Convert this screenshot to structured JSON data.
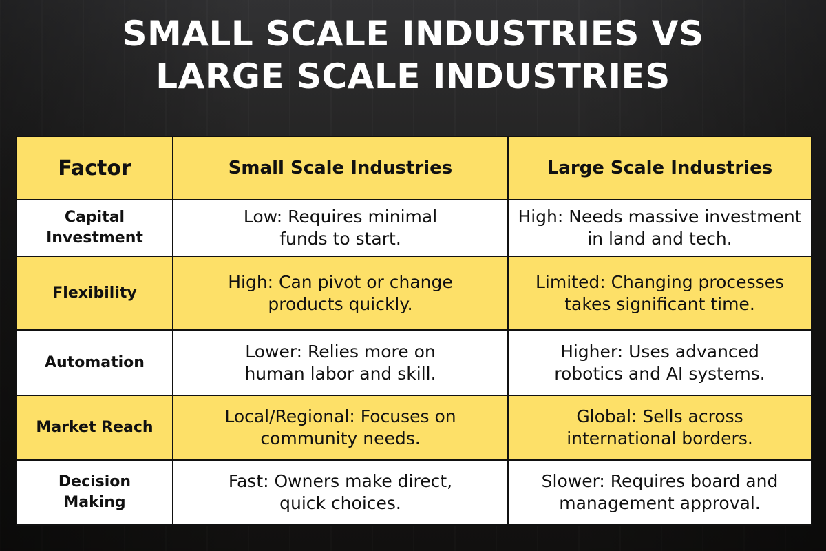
{
  "title": {
    "line1": "Small Scale Industries vs",
    "line2": "Large Scale Industries"
  },
  "colors": {
    "highlight": "#fde068",
    "plain": "#ffffff",
    "text": "#111111"
  },
  "table": {
    "headers": [
      "Factor",
      "Small Scale Industries",
      "Large Scale Industries"
    ],
    "rows": [
      {
        "factor": "Capital Investment",
        "small": "Low: Requires minimal funds to start.",
        "large": "High: Needs massive investment in land and tech."
      },
      {
        "factor": "Flexibility",
        "small": "High: Can pivot or change products quickly.",
        "large": "Limited: Changing processes takes significant time."
      },
      {
        "factor": "Automation",
        "small": "Lower: Relies more on human labor and skill.",
        "large": "Higher: Uses advanced robotics and AI systems."
      },
      {
        "factor": "Market Reach",
        "small": "Local/Regional: Focuses on community needs.",
        "large": "Global: Sells across international borders."
      },
      {
        "factor": "Decision Making",
        "small": "Fast: Owners make direct, quick choices.",
        "large": "Slower: Requires board and management approval."
      }
    ]
  }
}
